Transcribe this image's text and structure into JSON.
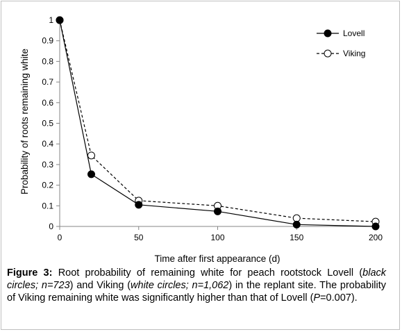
{
  "chart_data": {
    "type": "line",
    "title": "",
    "xlabel": "Time after first appearance (d)",
    "ylabel": "Probability of roots remaining white",
    "xlim": [
      0,
      200
    ],
    "ylim": [
      0,
      1
    ],
    "x_ticks": [
      0,
      50,
      100,
      150,
      200
    ],
    "y_ticks": [
      0,
      0.1,
      0.2,
      0.3,
      0.4,
      0.5,
      0.6,
      0.7,
      0.8,
      0.9,
      1
    ],
    "x_tick_labels": [
      "0",
      "50",
      "100",
      "150",
      "200"
    ],
    "y_tick_labels": [
      "0",
      "0.1",
      "0.2",
      "0.3",
      "0.4",
      "0.5",
      "0.6",
      "0.7",
      "0.8",
      "0.9",
      "1"
    ],
    "grid": false,
    "legend_position": "top-right",
    "series": [
      {
        "name": "Lovell",
        "marker": "filled-circle",
        "line": "solid",
        "color": "#000000",
        "x": [
          0,
          20,
          50,
          100,
          150,
          200
        ],
        "y": [
          1.0,
          0.253,
          0.105,
          0.073,
          0.009,
          0.0
        ]
      },
      {
        "name": "Viking",
        "marker": "open-circle",
        "line": "dashed",
        "color": "#000000",
        "x": [
          0,
          20,
          50,
          100,
          150,
          200
        ],
        "y": [
          1.0,
          0.344,
          0.125,
          0.1,
          0.04,
          0.023
        ]
      }
    ]
  },
  "caption": {
    "label": "Figure 3:",
    "text_1": " Root probability of remaining white for peach rootstock Lovell (",
    "italic_1": "black circles; n=723",
    "text_2": ") and Viking (",
    "italic_2": "white circles; n=1,062",
    "text_3": ") in the replant site. The probability of Viking remaining white was significantly higher than that of Lovell (",
    "italic_3": "P",
    "text_4": "=0.007)."
  }
}
